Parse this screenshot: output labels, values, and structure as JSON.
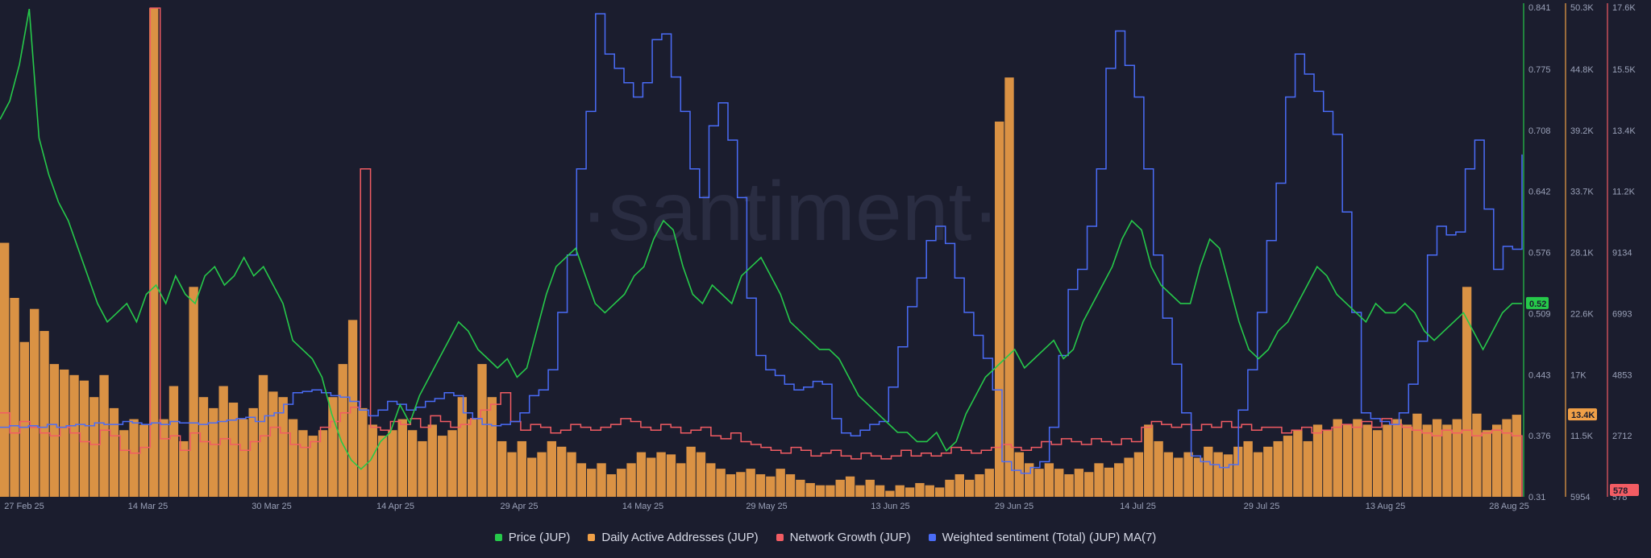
{
  "chart_data": {
    "type": "line",
    "watermark": "·santiment·",
    "x_ticks": [
      "27 Feb 25",
      "14 Mar 25",
      "30 Mar 25",
      "14 Apr 25",
      "29 Apr 25",
      "14 May 25",
      "29 May 25",
      "13 Jun 25",
      "29 Jun 25",
      "14 Jul 25",
      "29 Jul 25",
      "13 Aug 25",
      "28 Aug 25"
    ],
    "axes": {
      "price": {
        "ticks": [
          "0.841",
          "0.775",
          "0.708",
          "0.642",
          "0.576",
          "0.509",
          "0.443",
          "0.376",
          "0.31"
        ],
        "range": [
          0.31,
          0.841
        ],
        "color": "#26c94a",
        "current": "0.52"
      },
      "daa": {
        "ticks": [
          "50.3K",
          "44.8K",
          "39.2K",
          "33.7K",
          "28.1K",
          "22.6K",
          "17K",
          "11.5K",
          "5954"
        ],
        "range": [
          5954,
          50300
        ],
        "color": "#f0a047",
        "current": "13.4K"
      },
      "growth": {
        "ticks": [
          "17.6K",
          "15.5K",
          "13.4K",
          "11.2K",
          "9134",
          "6993",
          "4853",
          "2712",
          "578"
        ],
        "range": [
          578,
          17600
        ],
        "color": "#f25c63",
        "current": "578"
      }
    },
    "series": [
      {
        "name": "Price (JUP)",
        "color": "#26c94a",
        "axis": "price",
        "values": [
          0.72,
          0.74,
          0.78,
          0.84,
          0.7,
          0.66,
          0.63,
          0.61,
          0.58,
          0.55,
          0.52,
          0.5,
          0.51,
          0.52,
          0.5,
          0.53,
          0.54,
          0.52,
          0.55,
          0.53,
          0.52,
          0.55,
          0.56,
          0.54,
          0.55,
          0.57,
          0.55,
          0.56,
          0.54,
          0.52,
          0.48,
          0.47,
          0.46,
          0.44,
          0.4,
          0.37,
          0.35,
          0.34,
          0.35,
          0.37,
          0.38,
          0.41,
          0.39,
          0.42,
          0.44,
          0.46,
          0.48,
          0.5,
          0.49,
          0.47,
          0.46,
          0.45,
          0.46,
          0.44,
          0.45,
          0.49,
          0.53,
          0.56,
          0.57,
          0.58,
          0.55,
          0.52,
          0.51,
          0.52,
          0.53,
          0.55,
          0.56,
          0.59,
          0.61,
          0.6,
          0.56,
          0.53,
          0.52,
          0.54,
          0.53,
          0.52,
          0.55,
          0.56,
          0.57,
          0.55,
          0.53,
          0.5,
          0.49,
          0.48,
          0.47,
          0.47,
          0.46,
          0.44,
          0.42,
          0.41,
          0.4,
          0.39,
          0.38,
          0.38,
          0.37,
          0.37,
          0.38,
          0.36,
          0.37,
          0.4,
          0.42,
          0.44,
          0.45,
          0.46,
          0.47,
          0.45,
          0.46,
          0.47,
          0.48,
          0.46,
          0.47,
          0.5,
          0.52,
          0.54,
          0.56,
          0.59,
          0.61,
          0.6,
          0.56,
          0.54,
          0.53,
          0.52,
          0.52,
          0.56,
          0.59,
          0.58,
          0.54,
          0.5,
          0.47,
          0.46,
          0.47,
          0.49,
          0.5,
          0.52,
          0.54,
          0.56,
          0.55,
          0.53,
          0.52,
          0.51,
          0.5,
          0.52,
          0.51,
          0.51,
          0.52,
          0.51,
          0.49,
          0.48,
          0.49,
          0.5,
          0.51,
          0.49,
          0.47,
          0.49,
          0.51,
          0.52,
          0.52
        ]
      },
      {
        "name": "Daily Active Addresses (JUP)",
        "color": "#f0a047",
        "axis": "daa",
        "values": [
          29000,
          24000,
          20000,
          23000,
          21000,
          18000,
          17500,
          17000,
          16500,
          15000,
          17000,
          14000,
          12000,
          13000,
          12500,
          50300,
          13000,
          16000,
          11000,
          25000,
          15000,
          14000,
          16000,
          14500,
          13000,
          14000,
          17000,
          15500,
          15000,
          13000,
          12000,
          11500,
          12000,
          15000,
          18000,
          22000,
          14000,
          12500,
          11500,
          12000,
          13000,
          12000,
          11000,
          12500,
          11500,
          12000,
          15000,
          13000,
          18000,
          15000,
          11000,
          10000,
          11000,
          9500,
          10000,
          11000,
          10500,
          10000,
          9000,
          8500,
          9000,
          8000,
          8500,
          9000,
          10000,
          9500,
          10000,
          9800,
          9000,
          10500,
          10000,
          9000,
          8500,
          8000,
          8200,
          8500,
          8000,
          7800,
          8500,
          8000,
          7500,
          7200,
          7000,
          7000,
          7500,
          7800,
          7000,
          7500,
          7000,
          6500,
          7000,
          6800,
          7200,
          7000,
          6800,
          7500,
          8000,
          7500,
          8000,
          8500,
          40000,
          44000,
          10000,
          9000,
          8500,
          9000,
          8500,
          8000,
          8500,
          8200,
          9000,
          8600,
          9000,
          9500,
          10000,
          12500,
          11000,
          10000,
          9500,
          10000,
          9500,
          10500,
          10000,
          9800,
          10500,
          11000,
          10000,
          10500,
          11000,
          11500,
          12000,
          11000,
          12500,
          12000,
          13000,
          12500,
          13000,
          12500,
          12000,
          12500,
          13000,
          12500,
          13500,
          12500,
          13000,
          12500,
          13000,
          25000,
          13500,
          12000,
          12500,
          13000,
          13400
        ]
      },
      {
        "name": "Network Growth (JUP)",
        "color": "#f25c63",
        "axis": "growth",
        "values": [
          3500,
          2800,
          3200,
          3000,
          2800,
          2700,
          3000,
          2800,
          2500,
          2400,
          2900,
          2700,
          2200,
          2100,
          2300,
          17600,
          2600,
          2700,
          2200,
          2800,
          2500,
          2400,
          2600,
          2400,
          2200,
          2500,
          2700,
          3000,
          2800,
          2400,
          2300,
          2500,
          3000,
          3200,
          3500,
          3700,
          12000,
          3000,
          2900,
          3200,
          3100,
          3300,
          3000,
          3400,
          3200,
          3000,
          3100,
          3300,
          3600,
          3800,
          4200,
          3200,
          2900,
          3100,
          3000,
          2800,
          2900,
          3100,
          3000,
          2900,
          3000,
          3100,
          3300,
          3200,
          3000,
          2900,
          3100,
          3000,
          2800,
          2900,
          3000,
          2700,
          2600,
          2800,
          2500,
          2400,
          2300,
          2200,
          2100,
          2300,
          2200,
          2000,
          2100,
          2200,
          2000,
          1900,
          2100,
          2000,
          1900,
          2000,
          2200,
          2000,
          2100,
          2000,
          2100,
          2300,
          2200,
          2100,
          2200,
          2300,
          2400,
          2300,
          2200,
          2300,
          2500,
          2400,
          2600,
          2500,
          2400,
          2600,
          2500,
          2400,
          2600,
          2500,
          3000,
          3200,
          3100,
          3000,
          3100,
          2900,
          3100,
          3000,
          3200,
          3000,
          3100,
          2900,
          3000,
          3000,
          2800,
          2900,
          3000,
          2800,
          2900,
          3000,
          3100,
          3000,
          3200,
          3000,
          3300,
          3100,
          3000,
          2900,
          2800,
          2700,
          2900,
          2800,
          2900,
          2700,
          2800,
          2900,
          2800,
          2700,
          578
        ]
      },
      {
        "name": "Weighted sentiment (Total) (JUP) MA(7)",
        "color": "#4a6cf7",
        "axis": "growth",
        "values": [
          3000,
          3050,
          3000,
          3050,
          3000,
          3100,
          3000,
          3050,
          3100,
          3050,
          3150,
          3100,
          3100,
          3200,
          3150,
          3100,
          3150,
          3100,
          3200,
          3150,
          3150,
          3100,
          3150,
          3200,
          3250,
          3300,
          3350,
          3200,
          3400,
          3500,
          3800,
          4200,
          4250,
          4300,
          4200,
          4100,
          4050,
          3900,
          3600,
          3400,
          3600,
          3900,
          3800,
          3600,
          3700,
          3900,
          4000,
          4200,
          4100,
          3500,
          3300,
          3100,
          3050,
          3100,
          3200,
          3500,
          4100,
          4300,
          5000,
          7000,
          9000,
          12000,
          14000,
          17400,
          16000,
          15500,
          15000,
          14500,
          15000,
          16500,
          16700,
          15200,
          14000,
          12000,
          11000,
          13500,
          14300,
          13000,
          11000,
          7500,
          5500,
          5000,
          4800,
          4500,
          4300,
          4400,
          4600,
          4500,
          3300,
          2800,
          2700,
          2900,
          3100,
          3200,
          4400,
          5800,
          7200,
          8200,
          9500,
          10000,
          9400,
          8200,
          7000,
          6200,
          5400,
          4300,
          1800,
          1500,
          1400,
          1600,
          1800,
          3000,
          5500,
          7800,
          8500,
          10000,
          12000,
          15500,
          16800,
          15600,
          14500,
          12000,
          9000,
          6800,
          5200,
          3500,
          2000,
          1800,
          1700,
          1600,
          1700,
          3600,
          5000,
          7000,
          9500,
          11500,
          14500,
          16000,
          15300,
          14700,
          14000,
          13200,
          10500,
          7000,
          3500,
          3300,
          3200,
          3100,
          3500,
          4500,
          6000,
          9000,
          10000,
          9700,
          9800,
          12000,
          13000,
          10600,
          8500,
          9300,
          9200,
          12500
        ]
      }
    ]
  }
}
